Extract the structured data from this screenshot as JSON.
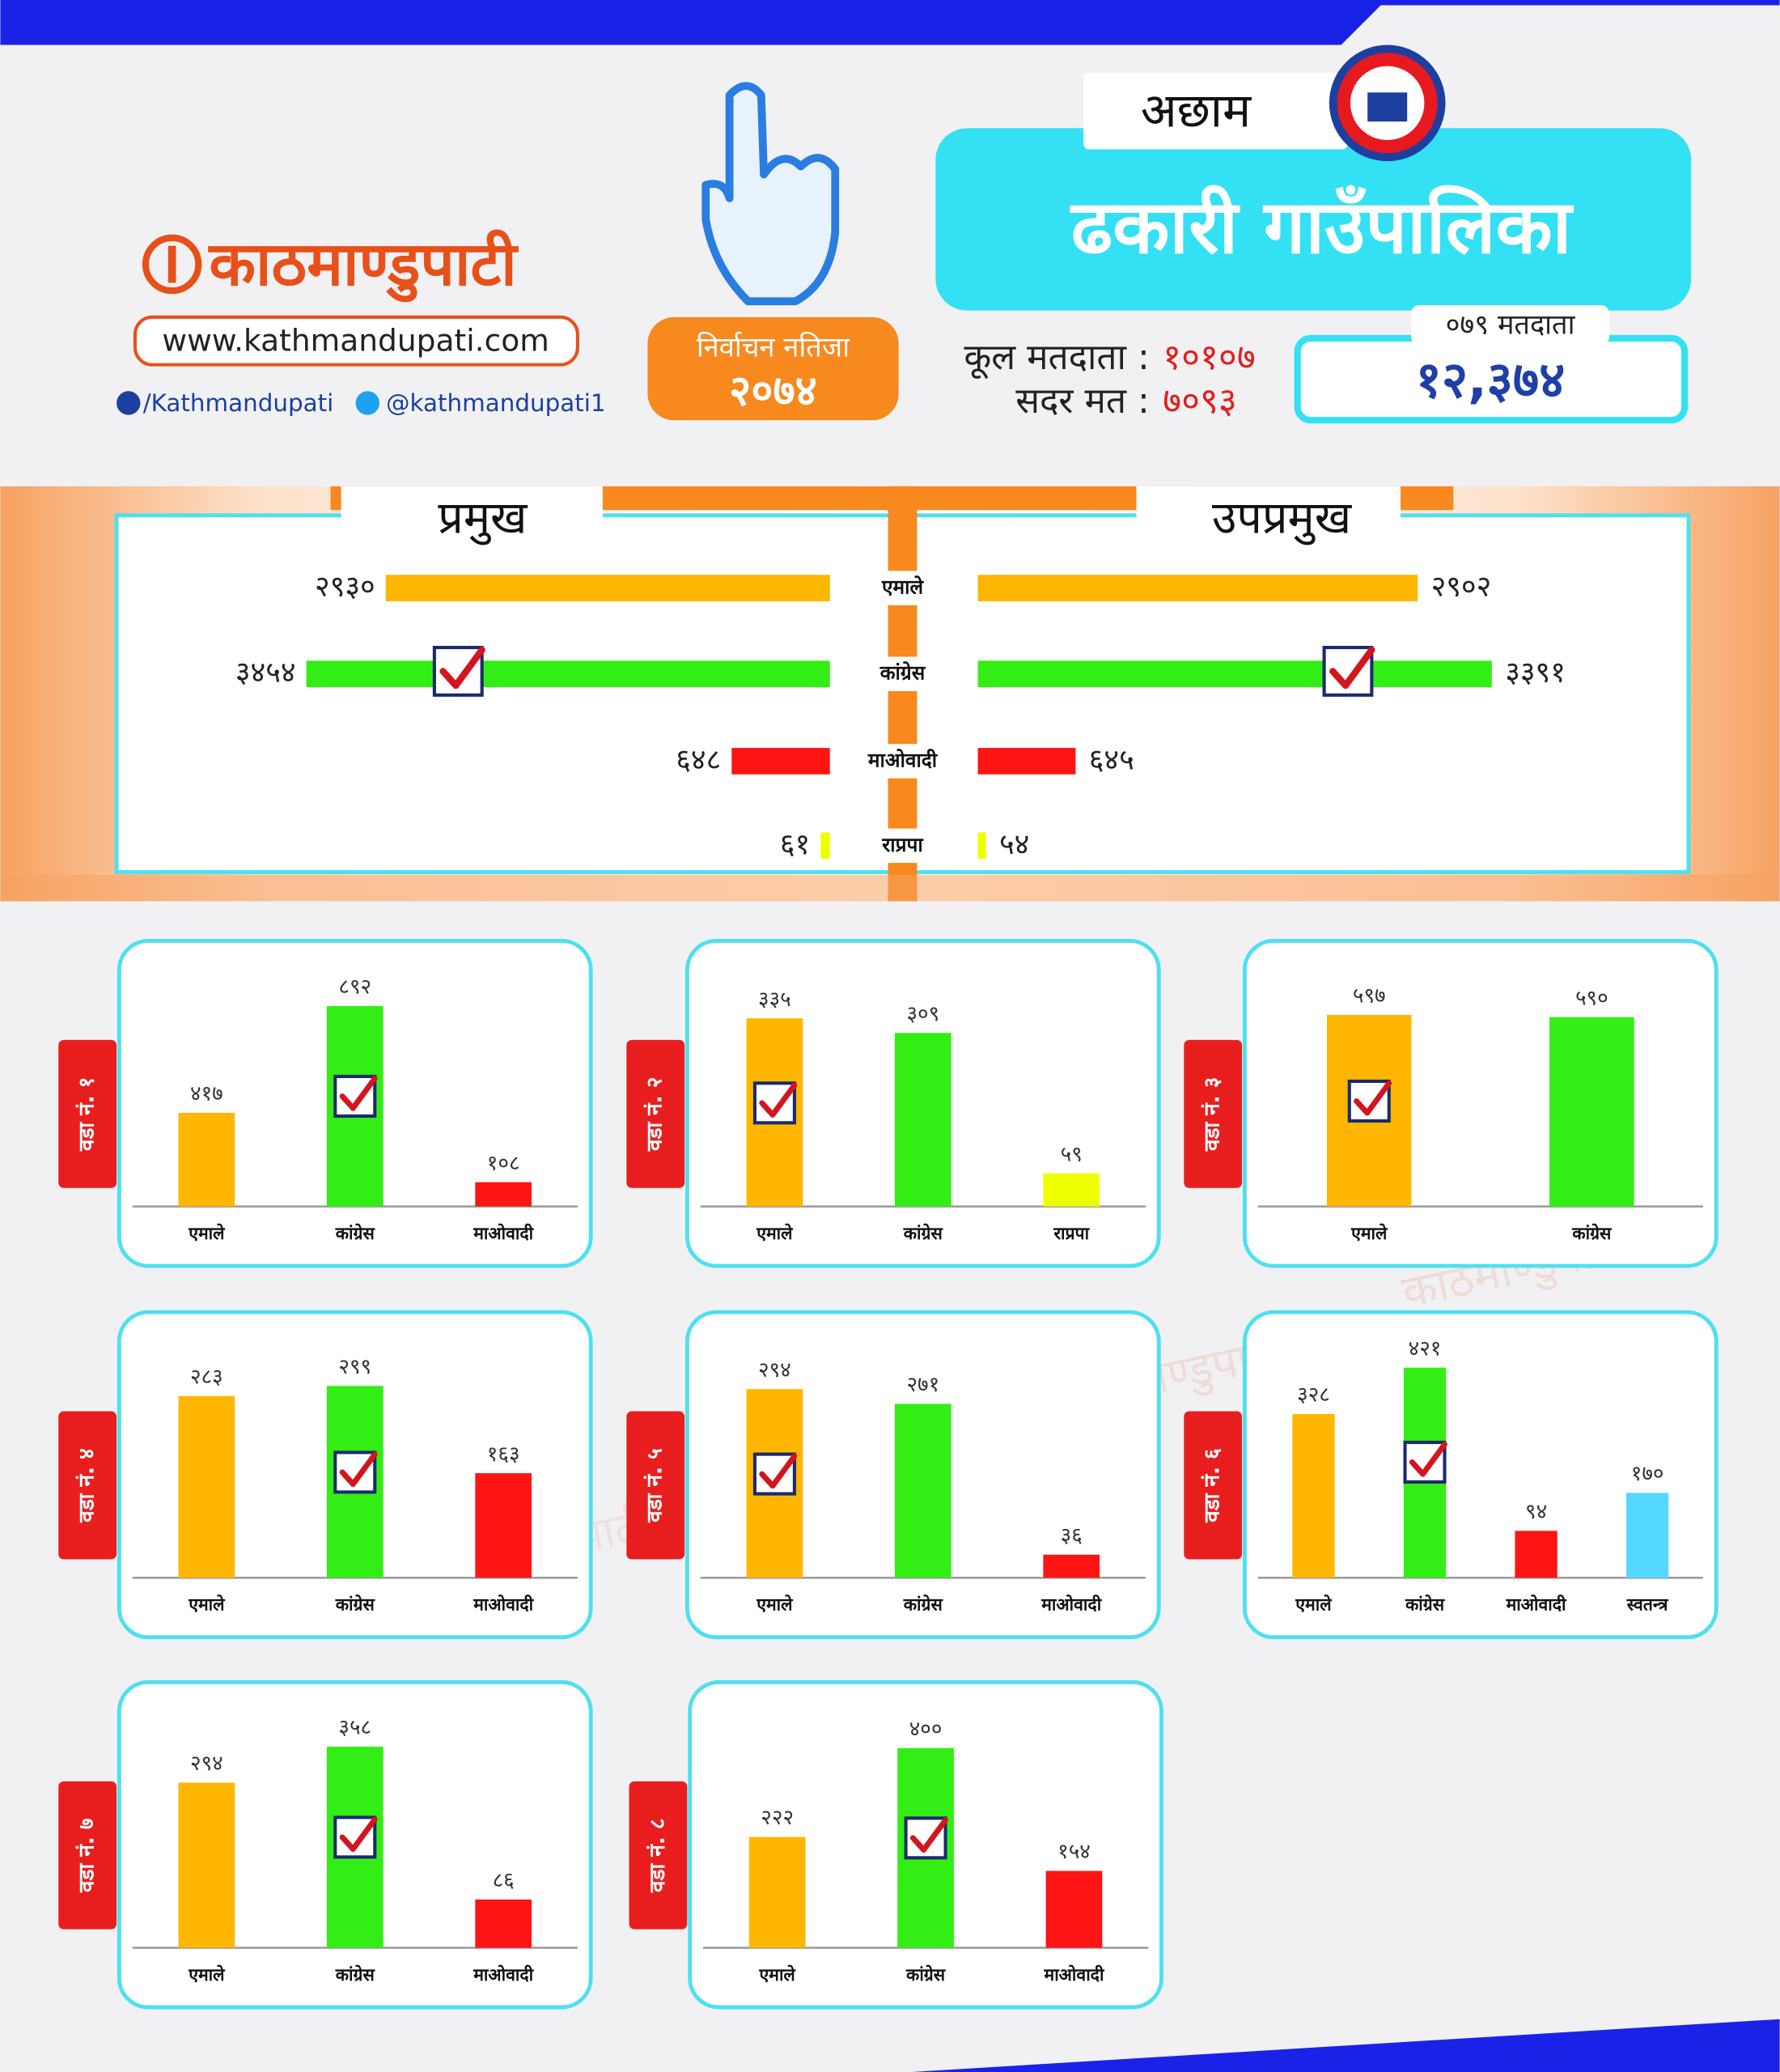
{
  "header": {
    "brand": "काठमाण्डुपाटी",
    "website": "www.kathmandupati.com",
    "facebook": "/Kathmandupati",
    "twitter": "@kathmandupati1",
    "badge_title": "निर्वाचन नतिजा",
    "badge_year": "२०७४",
    "district": "अछाम",
    "municipality": "ढकारी गाउँपालिका",
    "total_voters_label": "कूल मतदाता :",
    "total_voters": "१०१०७",
    "valid_votes_label": "सदर मत :",
    "valid_votes": "७०९३",
    "voters_079_label": "०७९ मतदाता",
    "voters_079": "१२,३७४"
  },
  "chart_data": [
    {
      "type": "butterfly",
      "categories": [
        "एमाले",
        "कांग्रेस",
        "माओवादी",
        "राप्रपा"
      ],
      "colors": [
        "#ffb600",
        "#33ee14",
        "#ff1414",
        "#eeff00"
      ],
      "xlim": [
        0,
        4000
      ],
      "series": [
        {
          "name": "प्रमुख",
          "values": [
            2930,
            3454,
            648,
            61
          ],
          "value_labels": [
            "२९३०",
            "३४५४",
            "६४८",
            "६१"
          ],
          "check": 1
        },
        {
          "name": "उपप्रमुख",
          "values": [
            2902,
            3391,
            645,
            54
          ],
          "value_labels": [
            "२९०२",
            "३३९१",
            "६४५",
            "५४"
          ],
          "check": 1
        }
      ]
    },
    {
      "type": "bar",
      "title": "वडा नं. १",
      "categories": [
        "एमाले",
        "कांग्रेस",
        "माओवादी"
      ],
      "colors": [
        "#ffb600",
        "#33ee14",
        "#ff1414"
      ],
      "values": [
        417,
        892,
        108
      ],
      "value_labels": [
        "४१७",
        "८९२",
        "१०८"
      ],
      "ylim": [
        0,
        1000
      ],
      "check": 1
    },
    {
      "type": "bar",
      "title": "वडा नं. २",
      "categories": [
        "एमाले",
        "कांग्रेस",
        "राप्रपा"
      ],
      "colors": [
        "#ffb600",
        "#33ee14",
        "#eeff00"
      ],
      "values": [
        335,
        309,
        59
      ],
      "value_labels": [
        "३३५",
        "३०९",
        "५९"
      ],
      "ylim": [
        0,
        400
      ],
      "check": 0
    },
    {
      "type": "bar",
      "title": "वडा नं. ३",
      "categories": [
        "एमाले",
        "कांग्रेस"
      ],
      "colors": [
        "#ffb600",
        "#33ee14"
      ],
      "values": [
        597,
        590
      ],
      "value_labels": [
        "५९७",
        "५९०"
      ],
      "ylim": [
        0,
        700
      ],
      "check": 0
    },
    {
      "type": "bar",
      "title": "वडा नं. ४",
      "categories": [
        "एमाले",
        "कांग्रेस",
        "माओवादी"
      ],
      "colors": [
        "#ffb600",
        "#33ee14",
        "#ff1414"
      ],
      "values": [
        283,
        299,
        163
      ],
      "value_labels": [
        "२८३",
        "२९९",
        "१६३"
      ],
      "ylim": [
        0,
        350
      ],
      "check": 1
    },
    {
      "type": "bar",
      "title": "वडा नं. ५",
      "categories": [
        "एमाले",
        "कांग्रेस",
        "माओवादी"
      ],
      "colors": [
        "#ffb600",
        "#33ee14",
        "#ff1414"
      ],
      "values": [
        294,
        271,
        36
      ],
      "value_labels": [
        "२९४",
        "२७१",
        "३६"
      ],
      "ylim": [
        0,
        350
      ],
      "check": 0
    },
    {
      "type": "bar",
      "title": "वडा नं. ६",
      "categories": [
        "एमाले",
        "कांग्रेस",
        "माओवादी",
        "स्वतन्त्र"
      ],
      "colors": [
        "#ffb600",
        "#33ee14",
        "#ff1414",
        "#55d8ff"
      ],
      "values": [
        328,
        421,
        94,
        170
      ],
      "value_labels": [
        "३२८",
        "४२१",
        "९४",
        "१७०"
      ],
      "ylim": [
        0,
        450
      ],
      "check": 1
    },
    {
      "type": "bar",
      "title": "वडा नं. ७",
      "categories": [
        "एमाले",
        "कांग्रेस",
        "माओवादी"
      ],
      "colors": [
        "#ffb600",
        "#33ee14",
        "#ff1414"
      ],
      "values": [
        294,
        358,
        86
      ],
      "value_labels": [
        "२९४",
        "३५८",
        "८६"
      ],
      "ylim": [
        0,
        400
      ],
      "check": 1
    },
    {
      "type": "bar",
      "title": "वडा नं. ८",
      "categories": [
        "एमाले",
        "कांग्रेस",
        "माओवादी"
      ],
      "colors": [
        "#ffb600",
        "#33ee14",
        "#ff1414"
      ],
      "values": [
        222,
        400,
        154
      ],
      "value_labels": [
        "२२२",
        "४००",
        "१५४"
      ],
      "ylim": [
        0,
        450
      ],
      "check": 1
    }
  ]
}
